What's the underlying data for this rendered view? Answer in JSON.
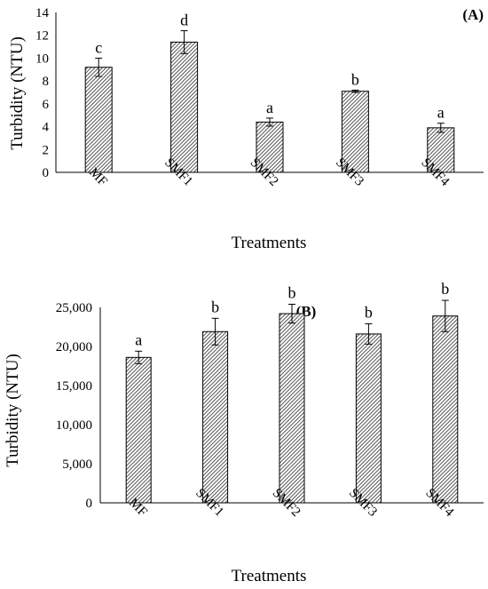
{
  "chart_data": [
    {
      "type": "bar",
      "panel_label": "(A)",
      "categories": [
        "MF",
        "SMF1",
        "SMF2",
        "SMF3",
        "SMF4"
      ],
      "values": [
        9.2,
        11.4,
        4.4,
        7.1,
        3.9
      ],
      "error": [
        0.8,
        1.0,
        0.35,
        0.1,
        0.4
      ],
      "significance": [
        "c",
        "d",
        "a",
        "b",
        "a"
      ],
      "xlabel": "Treatments",
      "ylabel": "Turbidity (NTU)",
      "ylim": [
        0,
        14
      ],
      "yticks": [
        0,
        2,
        4,
        6,
        8,
        10,
        12,
        14
      ],
      "ytick_labels": [
        "0",
        "2",
        "4",
        "6",
        "8",
        "10",
        "12",
        "14"
      ],
      "grid": false,
      "bar_pattern": "diagonal-hatch",
      "bar_color": "#888888"
    },
    {
      "type": "bar",
      "panel_label": "(B)",
      "categories": [
        "MF",
        "SMF1",
        "SMF2",
        "SMF3",
        "SMF4"
      ],
      "values": [
        18600,
        21900,
        24200,
        21600,
        23900
      ],
      "error": [
        800,
        1700,
        1200,
        1300,
        2000
      ],
      "significance": [
        "a",
        "b",
        "b",
        "b",
        "b"
      ],
      "xlabel": "Treatments",
      "ylabel": "Turbidity (NTU)",
      "ylim": [
        0,
        25000
      ],
      "yticks": [
        0,
        5000,
        10000,
        15000,
        20000,
        25000
      ],
      "ytick_labels": [
        "0",
        "5,000",
        "10,000",
        "15,000",
        "20,000",
        "25,000"
      ],
      "grid": false,
      "bar_pattern": "diagonal-hatch",
      "bar_color": "#888888"
    }
  ]
}
